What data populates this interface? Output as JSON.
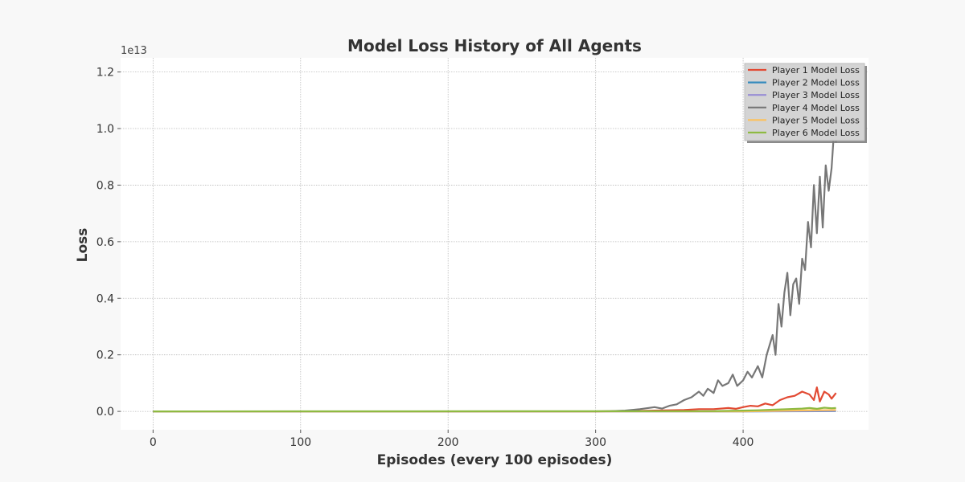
{
  "chart_data": {
    "type": "line",
    "title": "Model Loss History of All Agents",
    "xlabel": "Episodes (every 100 episodes)",
    "ylabel": "Loss",
    "y_offset_label": "1e13",
    "y_scale_factor": 10000000000000.0,
    "xlim": [
      -22,
      485
    ],
    "ylim": [
      -0.065,
      1.25
    ],
    "x_ticks": [
      0,
      100,
      200,
      300,
      400
    ],
    "x_tick_labels": [
      "0",
      "100",
      "200",
      "300",
      "400"
    ],
    "y_ticks": [
      0.0,
      0.2,
      0.4,
      0.6,
      0.8,
      1.0,
      1.2
    ],
    "y_tick_labels": [
      "0.0",
      "0.2",
      "0.4",
      "0.6",
      "0.8",
      "1.0",
      "1.2"
    ],
    "grid": true,
    "legend_position": "top-right",
    "series": [
      {
        "name": "Player 1 Model Loss",
        "color": "#E24A33",
        "x": [
          0,
          300,
          320,
          340,
          360,
          370,
          380,
          390,
          395,
          400,
          405,
          410,
          415,
          420,
          425,
          430,
          435,
          440,
          445,
          448,
          450,
          452,
          455,
          458,
          460,
          463
        ],
        "y": [
          0.0,
          0.0,
          0.001,
          0.003,
          0.005,
          0.008,
          0.008,
          0.012,
          0.009,
          0.015,
          0.02,
          0.018,
          0.028,
          0.022,
          0.04,
          0.05,
          0.055,
          0.07,
          0.06,
          0.04,
          0.085,
          0.035,
          0.07,
          0.06,
          0.045,
          0.065
        ]
      },
      {
        "name": "Player 2 Model Loss",
        "color": "#348ABD",
        "x": [
          0,
          400,
          463
        ],
        "y": [
          0.0,
          0.0,
          0.001
        ]
      },
      {
        "name": "Player 3 Model Loss",
        "color": "#988ED5",
        "x": [
          0,
          400,
          463
        ],
        "y": [
          0.0,
          0.0,
          0.002
        ]
      },
      {
        "name": "Player 4 Model Loss",
        "color": "#777777",
        "x": [
          0,
          300,
          310,
          320,
          330,
          340,
          345,
          350,
          355,
          360,
          365,
          370,
          373,
          376,
          380,
          383,
          386,
          390,
          393,
          396,
          400,
          403,
          406,
          410,
          413,
          416,
          420,
          422,
          424,
          426,
          428,
          430,
          432,
          434,
          436,
          438,
          440,
          442,
          444,
          446,
          448,
          450,
          452,
          454,
          456,
          458,
          460,
          462,
          463
        ],
        "y": [
          0.0,
          0.0,
          0.001,
          0.003,
          0.008,
          0.015,
          0.01,
          0.02,
          0.025,
          0.04,
          0.05,
          0.07,
          0.055,
          0.08,
          0.065,
          0.11,
          0.09,
          0.1,
          0.13,
          0.09,
          0.11,
          0.14,
          0.12,
          0.16,
          0.12,
          0.2,
          0.27,
          0.2,
          0.38,
          0.3,
          0.42,
          0.49,
          0.34,
          0.45,
          0.47,
          0.38,
          0.54,
          0.5,
          0.67,
          0.58,
          0.8,
          0.63,
          0.83,
          0.65,
          0.87,
          0.78,
          0.86,
          1.02,
          0.95
        ]
      },
      {
        "name": "Player 5 Model Loss",
        "color": "#FBC15E",
        "x": [
          0,
          400,
          430,
          463
        ],
        "y": [
          0.0,
          0.0,
          0.003,
          0.005
        ]
      },
      {
        "name": "Player 6 Model Loss",
        "color": "#8EBA42",
        "x": [
          0,
          380,
          400,
          410,
          420,
          430,
          440,
          445,
          450,
          455,
          460,
          463
        ],
        "y": [
          0.0,
          0.001,
          0.003,
          0.004,
          0.006,
          0.008,
          0.01,
          0.012,
          0.009,
          0.013,
          0.011,
          0.012
        ]
      }
    ]
  }
}
